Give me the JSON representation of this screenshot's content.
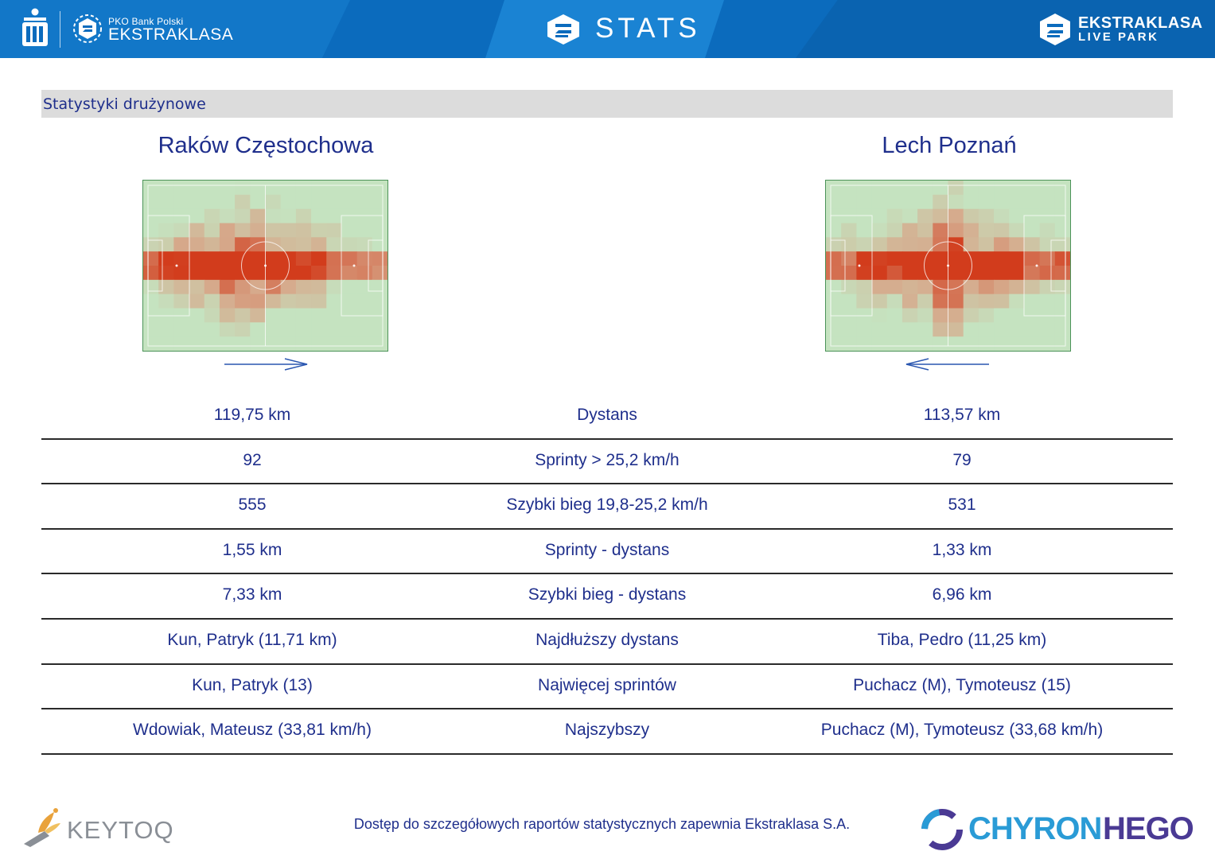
{
  "header": {
    "brand_small": "PKO Bank Polski",
    "brand_big": "EKSTRAKLASA",
    "stats_title": "STATS",
    "liveparks_line1": "EKSTRAKLASA",
    "liveparks_line2": "LIVE PARK"
  },
  "section": {
    "title": "Statystyki drużynowe"
  },
  "teams": {
    "left": "Raków Częstochowa",
    "right": "Lech Poznań"
  },
  "colors": {
    "header_blue": "#0b6bbd",
    "text_blue": "#1f2f8c",
    "heat_low": "#c5e3c0",
    "heat_high": "#d23c1c"
  },
  "stats": [
    {
      "left": "119,75 km",
      "label": "Dystans",
      "right": "113,57 km"
    },
    {
      "left": "92",
      "label": "Sprinty > 25,2 km/h",
      "right": "79"
    },
    {
      "left": "555",
      "label": "Szybki bieg 19,8-25,2 km/h",
      "right": "531"
    },
    {
      "left": "1,55 km",
      "label": "Sprinty - dystans",
      "right": "1,33 km"
    },
    {
      "left": "7,33 km",
      "label": "Szybki bieg - dystans",
      "right": "6,96 km"
    },
    {
      "left": "Kun, Patryk (11,71 km)",
      "label": "Najdłuższy dystans",
      "right": "Tiba, Pedro (11,25 km)"
    },
    {
      "left": "Kun, Patryk (13)",
      "label": "Najwięcej sprintów",
      "right": "Puchacz (M), Tymoteusz (15)"
    },
    {
      "left": "Wdowiak, Mateusz (33,81 km/h)",
      "label": "Najszybszy",
      "right": "Puchacz (M), Tymoteusz (33,68 km/h)"
    }
  ],
  "footer": {
    "note": "Dostęp do szczegółowych raportów statystycznych zapewnia Ekstraklasa S.A.",
    "keytoq": "KEYTOQ",
    "chyron_part1": "CHYRON",
    "chyron_part2": "HEGO"
  }
}
